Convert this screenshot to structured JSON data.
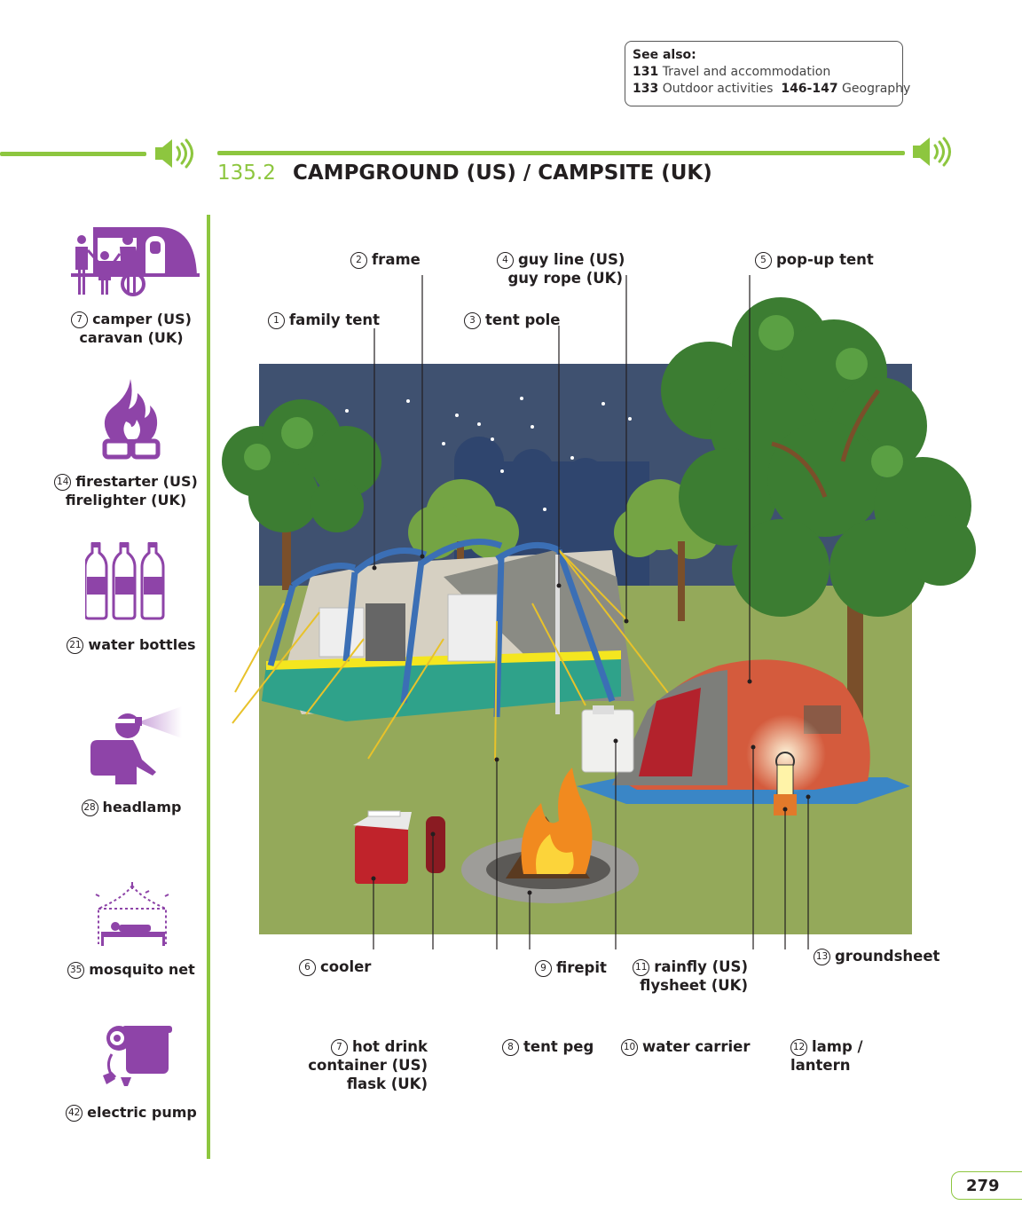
{
  "see_also": {
    "heading": "See also:",
    "refs": [
      {
        "num": "131",
        "text": "Travel and accommodation"
      },
      {
        "num": "133",
        "text": "Outdoor activities"
      },
      {
        "num": "146-147",
        "text": "Geography"
      }
    ]
  },
  "section": {
    "number": "135.2",
    "title": "CAMPGROUND (US) / CAMPSITE (UK)"
  },
  "sidebar": [
    {
      "num": "7",
      "line1": "camper (US)",
      "line2": "caravan (UK)",
      "icon": "caravan-icon"
    },
    {
      "num": "14",
      "line1": "firestarter (US)",
      "line2": "firelighter (UK)",
      "icon": "firestarter-icon"
    },
    {
      "num": "21",
      "line1": "water bottles",
      "line2": "",
      "icon": "water-bottles-icon"
    },
    {
      "num": "28",
      "line1": "headlamp",
      "line2": "",
      "icon": "headlamp-icon"
    },
    {
      "num": "35",
      "line1": "mosquito net",
      "line2": "",
      "icon": "mosquito-net-icon"
    },
    {
      "num": "42",
      "line1": "electric pump",
      "line2": "",
      "icon": "electric-pump-icon"
    }
  ],
  "labels": {
    "family_tent": {
      "num": "1",
      "l1": "family tent"
    },
    "frame": {
      "num": "2",
      "l1": "frame"
    },
    "tent_pole": {
      "num": "3",
      "l1": "tent pole"
    },
    "guy_line": {
      "num": "4",
      "l1": "guy line (US)",
      "l2": "guy rope (UK)"
    },
    "popup_tent": {
      "num": "5",
      "l1": "pop-up tent"
    },
    "cooler": {
      "num": "6",
      "l1": "cooler"
    },
    "hot_drink": {
      "num": "7",
      "l1": "hot drink",
      "l2": "container (US)",
      "l3": "flask (UK)"
    },
    "tent_peg": {
      "num": "8",
      "l1": "tent peg"
    },
    "firepit": {
      "num": "9",
      "l1": "firepit"
    },
    "water_carrier": {
      "num": "10",
      "l1": "water carrier"
    },
    "rainfly": {
      "num": "11",
      "l1": "rainfly (US)",
      "l2": "flysheet (UK)"
    },
    "lamp": {
      "num": "12",
      "l1": "lamp /",
      "l2": "lantern"
    },
    "groundsheet": {
      "num": "13",
      "l1": "groundsheet"
    }
  },
  "colors": {
    "accent_green": "#8dc63f",
    "icon_purple": "#8e44a8"
  },
  "page_number": "279"
}
